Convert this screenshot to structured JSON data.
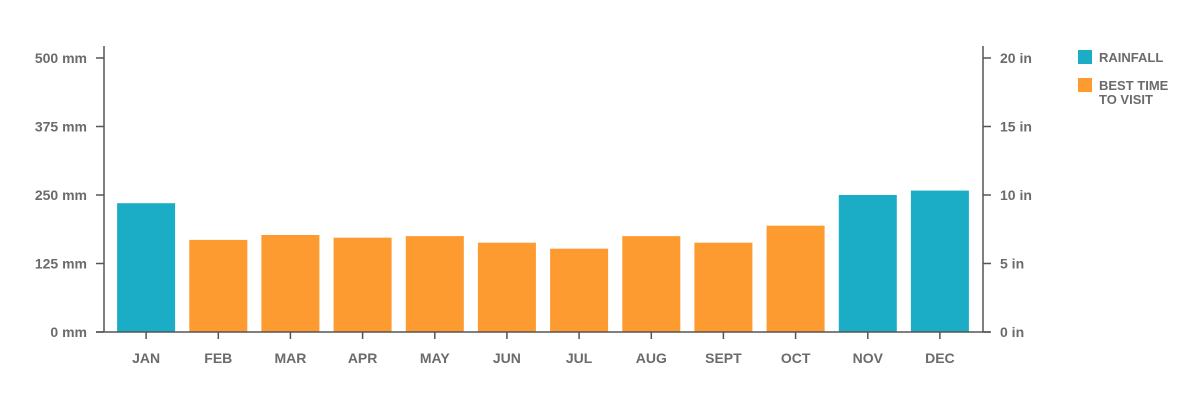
{
  "chart_data": {
    "type": "bar",
    "categories": [
      "JAN",
      "FEB",
      "MAR",
      "APR",
      "MAY",
      "JUN",
      "JUL",
      "AUG",
      "SEPT",
      "OCT",
      "NOV",
      "DEC"
    ],
    "values": [
      235,
      168,
      177,
      172,
      175,
      163,
      152,
      175,
      163,
      194,
      250,
      258
    ],
    "category_group": [
      "rainfall",
      "best",
      "best",
      "best",
      "best",
      "best",
      "best",
      "best",
      "best",
      "best",
      "rainfall",
      "rainfall"
    ],
    "title": "",
    "xlabel": "",
    "ylabel": "",
    "ylim": [
      0,
      500
    ],
    "y2lim": [
      0,
      20
    ],
    "y_ticks": [
      {
        "value": 0,
        "label": "0 mm"
      },
      {
        "value": 125,
        "label": "125 mm"
      },
      {
        "value": 250,
        "label": "250 mm"
      },
      {
        "value": 375,
        "label": "375 mm"
      },
      {
        "value": 500,
        "label": "500 mm"
      }
    ],
    "y2_ticks": [
      {
        "value": 0,
        "label": "0 in"
      },
      {
        "value": 5,
        "label": "5 in"
      },
      {
        "value": 10,
        "label": "10 in"
      },
      {
        "value": 15,
        "label": "15 in"
      },
      {
        "value": 20,
        "label": "20 in"
      }
    ],
    "grid": false,
    "legend_position": "top-right",
    "legend": [
      {
        "key": "rainfall",
        "lines": [
          "RAINFALL"
        ],
        "color": "#1badc5"
      },
      {
        "key": "best",
        "lines": [
          "BEST TIME",
          "TO VISIT"
        ],
        "color": "#fd9a30"
      }
    ]
  }
}
